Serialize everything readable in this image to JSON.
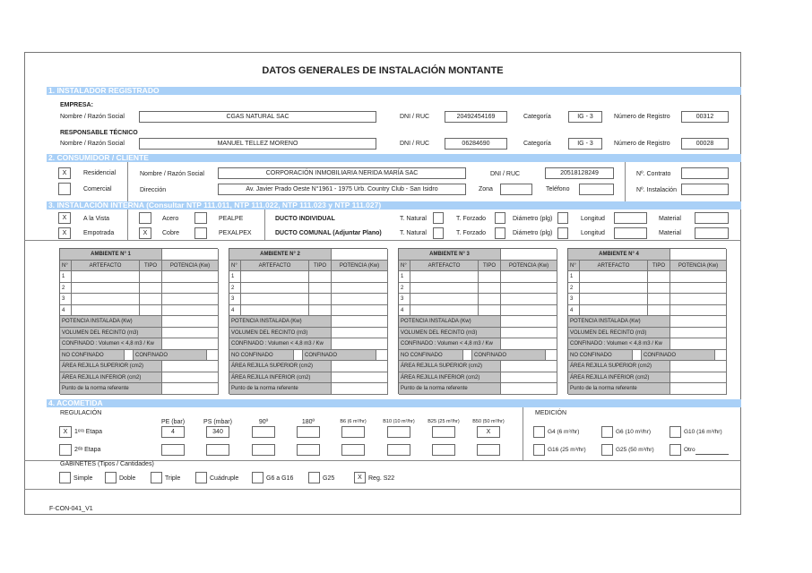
{
  "title": "DATOS GENERALES DE INSTALACIÓN MONTANTE",
  "sections": {
    "s1": "1. INSTALADOR REGISTRADO",
    "s2": "2. CONSUMIDOR / CLIENTE",
    "s3": "3. INSTALACIÓN INTERNA (Consultar NTP 111.011, NTP 111.022, NTP 111.023 y NTP 111.027)",
    "s4": "4. ACOMETIDA"
  },
  "installer": {
    "empresa_label": "EMPRESA:",
    "responsable_label": "RESPONSABLE TÉCNICO",
    "name_label": "Nombre / Razón Social",
    "dni_label": "DNI / RUC",
    "cat_label": "Categoría",
    "reg_label": "Número de Registro",
    "empresa": {
      "name": "CGAS NATURAL SAC",
      "dni": "20492454169",
      "cat": "IG -  3",
      "reg": "00312"
    },
    "responsable": {
      "name": "MANUEL TELLEZ MORENO",
      "dni": "06284690",
      "cat": "IG -  3",
      "reg": "00028"
    }
  },
  "client": {
    "residencial_label": "Residencial",
    "residencial_mark": "X",
    "comercial_label": "Comercial",
    "comercial_mark": "",
    "name_label": "Nombre / Razón Social",
    "name": "CORPORACIÓN INMOBILIARIA NERIDA MARÍA SAC",
    "dir_label": "Dirección",
    "dir": "Av. Javier Prado Oeste N°1961 - 1975  Urb. Country Club - San Isidro",
    "dni_label": "DNI / RUC",
    "dni": "20518128249",
    "zona_label": "Zona",
    "zona": "",
    "tel_label": "Teléfono",
    "tel": "",
    "contrato_label": "Nº. Contrato",
    "contrato": "",
    "instalacion_label": "Nº. Instalación",
    "instalacion": ""
  },
  "internal": {
    "vista_label": "A la Vista",
    "vista_mark": "X",
    "empotrada_label": "Empotrada",
    "empotrada_mark": "X",
    "acero_label": "Acero",
    "acero_mark": "",
    "cobre_label": "Cobre",
    "cobre_mark": "X",
    "pealpe_label": "PEALPE",
    "pealpe_mark": "",
    "pexalpex_label": "PEXALPEX",
    "pexalpex_mark": "",
    "ducto_ind": "DUCTO INDIVIDUAL",
    "ducto_com": "DUCTO COMUNAL (Adjuntar Plano)",
    "tnatural": "T. Natural",
    "tforzado": "T. Forzado",
    "diametro": "Diámetro (plg)",
    "longitud": "Longitud",
    "material": "Material"
  },
  "ambientes": [
    {
      "title": "AMBIENTE N° 1"
    },
    {
      "title": "AMBIENTE N° 2"
    },
    {
      "title": "AMBIENTE N° 3"
    },
    {
      "title": "AMBIENTE N° 4"
    }
  ],
  "ambiente_labels": {
    "n": "N°",
    "artefacto": "ARTEFACTO",
    "tipo": "TIPO",
    "potencia": "POTENCIA (Kw)",
    "rows": [
      "1",
      "2",
      "3",
      "4"
    ],
    "potencia_instalada": "POTENCIA INSTALADA (Kw)",
    "volumen": "VOLUMEN DEL RECINTO (m3)",
    "confinado_vol": "CONFINADO :  Volumen < 4,8 m3 / Kw",
    "no_confinado": "NO CONFINADO",
    "confinado": "CONFINADO",
    "rejilla_sup": "ÁREA REJILLA SUPERIOR (cm2)",
    "rejilla_inf": "ÁREA REJILLA INFERIOR (cm2)",
    "punto_norma": "Punto de la norma referente"
  },
  "acometida": {
    "regulacion": "REGULACIÓN",
    "medicion": "MEDICIÓN",
    "columns": [
      "PE (bar)",
      "PS (mbar)",
      "90º",
      "180º",
      "B6 (6 m³/hr)",
      "B10 (10 m³/hr)",
      "B25 (25 m³/hr)",
      "B50 (50 m³/hr)"
    ],
    "etapa1_label": "1ᵉʳᵃ Etapa",
    "etapa1_mark": "X",
    "etapa1_values": [
      "4",
      "340",
      "",
      "",
      "",
      "",
      "",
      "X"
    ],
    "etapa2_label": "2ᵈᵃ Etapa",
    "etapa2_mark": "",
    "etapa2_values": [
      "",
      "",
      "",
      "",
      "",
      "",
      "",
      ""
    ],
    "medidores": [
      "G4 (6 m³/hr)",
      "G6 (10 m³/hr)",
      "G10 (16 m³/hr)",
      "G16 (25 m³/hr)",
      "G25 (50 m³/hr)",
      "Otro"
    ],
    "medidores_marks": [
      "",
      "",
      "",
      "",
      "",
      ""
    ],
    "gabinetes_label": "GABINETES (Tipos / Cantidades)",
    "gabinetes": [
      "Simple",
      "Doble",
      "Triple",
      "Cuádruple",
      "G6 a G16",
      "G25",
      "Reg. S22"
    ],
    "gabinetes_marks": [
      "",
      "",
      "",
      "",
      "",
      "",
      "X"
    ]
  },
  "footer_code": "F-CON-041_V1"
}
